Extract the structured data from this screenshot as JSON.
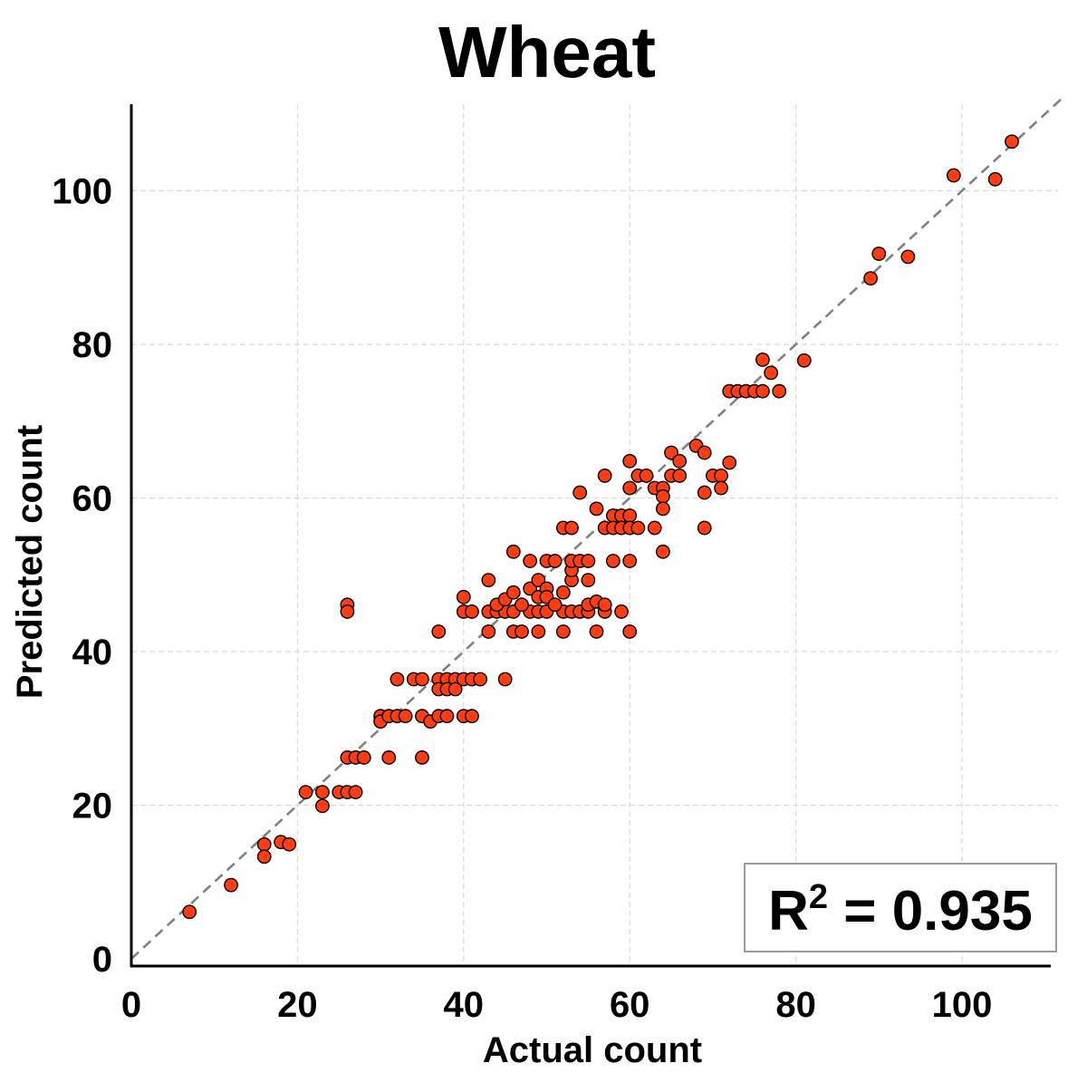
{
  "chart_data": {
    "type": "scatter",
    "title": "Wheat",
    "xlabel": "Actual count",
    "ylabel": "Predicted count",
    "xlim": [
      0,
      112
    ],
    "ylim": [
      0,
      112
    ],
    "xticks": [
      0,
      20,
      40,
      60,
      80,
      100
    ],
    "yticks": [
      0,
      20,
      40,
      60,
      80,
      100
    ],
    "grid": true,
    "identity_line": true,
    "annotation": {
      "prefix": "R",
      "sup": "2",
      "value": " = 0.935",
      "position": "bottom-right"
    },
    "colors": {
      "point_fill": "#ff3d12",
      "point_edge": "#000000",
      "identity_line": "#808080",
      "grid": "#d9d9d9"
    },
    "points": [
      [
        7,
        6.1
      ],
      [
        12,
        9.6
      ],
      [
        16,
        14.9
      ],
      [
        16,
        13.3
      ],
      [
        18,
        15.2
      ],
      [
        19,
        14.9
      ],
      [
        21,
        21.7
      ],
      [
        23,
        21.7
      ],
      [
        23,
        19.9
      ],
      [
        25,
        21.7
      ],
      [
        26,
        21.7
      ],
      [
        27,
        21.7
      ],
      [
        26,
        26.2
      ],
      [
        27,
        26.2
      ],
      [
        28,
        26.2
      ],
      [
        26,
        46.1
      ],
      [
        26,
        45.2
      ],
      [
        31,
        26.2
      ],
      [
        35,
        26.2
      ],
      [
        30,
        31.6
      ],
      [
        30,
        30.9
      ],
      [
        31,
        31.6
      ],
      [
        32,
        31.6
      ],
      [
        33,
        31.6
      ],
      [
        35,
        31.6
      ],
      [
        36,
        30.9
      ],
      [
        37,
        31.6
      ],
      [
        38,
        31.6
      ],
      [
        40,
        31.6
      ],
      [
        41,
        31.6
      ],
      [
        32,
        36.4
      ],
      [
        34,
        36.4
      ],
      [
        35,
        36.4
      ],
      [
        37,
        36.4
      ],
      [
        38,
        36.4
      ],
      [
        39,
        36.4
      ],
      [
        40,
        36.4
      ],
      [
        41,
        36.4
      ],
      [
        42,
        36.4
      ],
      [
        45,
        36.4
      ],
      [
        37,
        35.1
      ],
      [
        38,
        35.1
      ],
      [
        39,
        35.1
      ],
      [
        37,
        42.6
      ],
      [
        43,
        42.6
      ],
      [
        46,
        42.6
      ],
      [
        47,
        42.6
      ],
      [
        49,
        42.6
      ],
      [
        52,
        42.6
      ],
      [
        56,
        42.6
      ],
      [
        60,
        42.6
      ],
      [
        40,
        45.2
      ],
      [
        41,
        45.2
      ],
      [
        43,
        45.2
      ],
      [
        44,
        45.2
      ],
      [
        45,
        45.2
      ],
      [
        46,
        45.2
      ],
      [
        48,
        45.2
      ],
      [
        49,
        45.2
      ],
      [
        50,
        45.2
      ],
      [
        52,
        45.2
      ],
      [
        53,
        45.2
      ],
      [
        54,
        45.2
      ],
      [
        55,
        45.2
      ],
      [
        57,
        45.2
      ],
      [
        59,
        45.2
      ],
      [
        40,
        47.1
      ],
      [
        43,
        49.3
      ],
      [
        44,
        46.1
      ],
      [
        45,
        46.8
      ],
      [
        46,
        47.7
      ],
      [
        47,
        46.1
      ],
      [
        48,
        48.2
      ],
      [
        49,
        49.3
      ],
      [
        49,
        47.1
      ],
      [
        50,
        48.2
      ],
      [
        50,
        47.1
      ],
      [
        51,
        46.1
      ],
      [
        52,
        47.7
      ],
      [
        53,
        49.3
      ],
      [
        53,
        50.6
      ],
      [
        55,
        49.3
      ],
      [
        55,
        46.1
      ],
      [
        56,
        46.5
      ],
      [
        57,
        46.1
      ],
      [
        46,
        53.0
      ],
      [
        48,
        51.8
      ],
      [
        50,
        51.8
      ],
      [
        51,
        51.8
      ],
      [
        53,
        51.8
      ],
      [
        54,
        51.8
      ],
      [
        55,
        51.8
      ],
      [
        58,
        51.8
      ],
      [
        60,
        51.8
      ],
      [
        52,
        56.1
      ],
      [
        53,
        56.1
      ],
      [
        56,
        58.6
      ],
      [
        57,
        56.1
      ],
      [
        58,
        57.7
      ],
      [
        58,
        56.1
      ],
      [
        59,
        57.7
      ],
      [
        59,
        56.1
      ],
      [
        60,
        57.7
      ],
      [
        60,
        56.1
      ],
      [
        61,
        56.1
      ],
      [
        54,
        60.7
      ],
      [
        57,
        62.9
      ],
      [
        60,
        64.8
      ],
      [
        60,
        61.3
      ],
      [
        61,
        62.9
      ],
      [
        62,
        62.9
      ],
      [
        63,
        61.3
      ],
      [
        63,
        56.1
      ],
      [
        64,
        61.3
      ],
      [
        64,
        60.2
      ],
      [
        64,
        58.6
      ],
      [
        64,
        53.0
      ],
      [
        65,
        62.9
      ],
      [
        65,
        65.9
      ],
      [
        66,
        62.9
      ],
      [
        66,
        64.8
      ],
      [
        68,
        66.8
      ],
      [
        69,
        65.9
      ],
      [
        69,
        60.7
      ],
      [
        69,
        56.1
      ],
      [
        70,
        62.9
      ],
      [
        71,
        62.9
      ],
      [
        71,
        61.3
      ],
      [
        72,
        64.6
      ],
      [
        72,
        73.9
      ],
      [
        73,
        73.9
      ],
      [
        74,
        73.9
      ],
      [
        75,
        73.9
      ],
      [
        76,
        73.9
      ],
      [
        78,
        73.9
      ],
      [
        76,
        78.0
      ],
      [
        77,
        76.3
      ],
      [
        81,
        77.9
      ],
      [
        89,
        88.6
      ],
      [
        90,
        91.8
      ],
      [
        93.5,
        91.4
      ],
      [
        99,
        102.0
      ],
      [
        104,
        101.5
      ],
      [
        106,
        106.4
      ]
    ]
  }
}
